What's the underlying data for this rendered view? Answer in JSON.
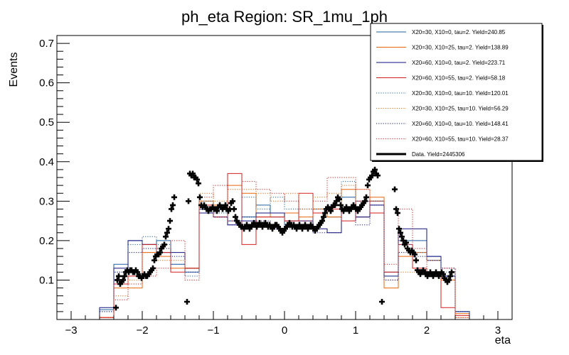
{
  "chart_data": {
    "type": "line",
    "title": "ph_eta Region: SR_1mu_1ph",
    "xlabel": "eta",
    "ylabel": "Events",
    "xlim": [
      -3.2,
      3.2
    ],
    "ylim": [
      0,
      0.72
    ],
    "x_ticks": [
      -3,
      -2,
      -1,
      0,
      1,
      2,
      3
    ],
    "x_tick_labels": [
      "−3",
      "−2",
      "−1",
      "0",
      "1",
      "2",
      "3"
    ],
    "y_ticks": [
      0.1,
      0.2,
      0.3,
      0.4,
      0.5,
      0.6,
      0.7
    ],
    "y_tick_labels": [
      "0.1",
      "0.2",
      "0.3",
      "0.4",
      "0.5",
      "0.6",
      "0.7"
    ],
    "legend_position": "top-right",
    "bin_edges": [
      -3.0,
      -2.8,
      -2.6,
      -2.4,
      -2.2,
      -2.0,
      -1.8,
      -1.6,
      -1.4,
      -1.2,
      -1.0,
      -0.8,
      -0.6,
      -0.4,
      -0.2,
      0.0,
      0.2,
      0.4,
      0.6,
      0.8,
      1.0,
      1.2,
      1.4,
      1.6,
      1.8,
      2.0,
      2.2,
      2.4,
      2.6,
      2.8,
      3.0
    ],
    "series": [
      {
        "name": "X20=30, X10=0, tau=2. Yield=240.85",
        "color": "#1f5f9f",
        "style": "solid",
        "values": [
          0,
          0,
          0.025,
          0.14,
          0.2,
          0.19,
          0.2,
          0.14,
          0.12,
          0.28,
          0.28,
          0.25,
          0.26,
          0.29,
          0.26,
          0.24,
          0.24,
          0.27,
          0.26,
          0.31,
          0.26,
          0.3,
          0.12,
          0.2,
          0.2,
          0.16,
          0.11,
          0.02,
          0,
          0
        ]
      },
      {
        "name": "X20=30, X10=25, tau=2. Yield=138.89",
        "color": "#e8660c",
        "style": "solid",
        "values": [
          0,
          0,
          0.005,
          0.08,
          0.08,
          0.17,
          0.16,
          0.13,
          0.13,
          0.3,
          0.29,
          0.34,
          0.32,
          0.26,
          0.27,
          0.27,
          0.26,
          0.28,
          0.26,
          0.33,
          0.26,
          0.31,
          0.08,
          0.16,
          0.17,
          0.15,
          0.1,
          0.015,
          0,
          0
        ]
      },
      {
        "name": "X20=60, X10=0, tau=2. Yield=223.71",
        "color": "#101080",
        "style": "solid",
        "values": [
          0,
          0,
          0.03,
          0.13,
          0.2,
          0.19,
          0.17,
          0.17,
          0.13,
          0.27,
          0.26,
          0.24,
          0.25,
          0.27,
          0.27,
          0.25,
          0.25,
          0.23,
          0.22,
          0.28,
          0.26,
          0.29,
          0.11,
          0.23,
          0.23,
          0.16,
          0.11,
          0.02,
          0,
          0
        ]
      },
      {
        "name": "X20=60, X10=55, tau=2. Yield=58.18",
        "color": "#d41e1e",
        "style": "solid",
        "values": [
          0,
          0,
          0.005,
          0.09,
          0.11,
          0.19,
          0.17,
          0.12,
          0.13,
          0.29,
          0.26,
          0.37,
          0.19,
          0.26,
          0.26,
          0.25,
          0.32,
          0.27,
          0.28,
          0.25,
          0.3,
          0.27,
          0.12,
          0.19,
          0.13,
          0.12,
          0.03,
          0.01,
          0,
          0
        ]
      },
      {
        "name": "X20=30, X10=0, tau=10. Yield=120.01",
        "color": "#1f5f9f",
        "style": "dotted",
        "values": [
          0,
          0,
          0.02,
          0.12,
          0.19,
          0.21,
          0.19,
          0.14,
          0.11,
          0.3,
          0.27,
          0.25,
          0.31,
          0.28,
          0.31,
          0.28,
          0.28,
          0.28,
          0.29,
          0.35,
          0.3,
          0.3,
          0.11,
          0.19,
          0.17,
          0.15,
          0.12,
          0.02,
          0,
          0
        ]
      },
      {
        "name": "X20=30, X10=25, tau=10. Yield=56.29",
        "color": "#e8660c",
        "style": "dotted",
        "values": [
          0,
          0,
          0.005,
          0.06,
          0.1,
          0.17,
          0.15,
          0.15,
          0.13,
          0.32,
          0.3,
          0.33,
          0.33,
          0.32,
          0.3,
          0.32,
          0.28,
          0.31,
          0.32,
          0.34,
          0.33,
          0.3,
          0.1,
          0.12,
          0.12,
          0.11,
          0.1,
          0.005,
          0,
          0
        ]
      },
      {
        "name": "X20=60, X10=0, tau=10. Yield=148.41",
        "color": "#101080",
        "style": "dotted",
        "values": [
          0,
          0,
          0.02,
          0.12,
          0.17,
          0.18,
          0.18,
          0.16,
          0.12,
          0.28,
          0.26,
          0.24,
          0.26,
          0.25,
          0.23,
          0.23,
          0.23,
          0.22,
          0.22,
          0.28,
          0.24,
          0.29,
          0.1,
          0.17,
          0.16,
          0.15,
          0.13,
          0.02,
          0,
          0
        ]
      },
      {
        "name": "X20=60, X10=55, tau=10. Yield=28.37",
        "color": "#d41e1e",
        "style": "dotted",
        "values": [
          0,
          0,
          0.005,
          0.05,
          0.09,
          0.11,
          0.13,
          0.2,
          0.1,
          0.31,
          0.34,
          0.25,
          0.35,
          0.33,
          0.32,
          0.3,
          0.25,
          0.3,
          0.36,
          0.36,
          0.33,
          0.3,
          0.14,
          0.28,
          0.18,
          0.12,
          0.13,
          0.005,
          0,
          0
        ]
      }
    ],
    "data_series": {
      "name": "Data. Yield=2445306",
      "color": "#000000",
      "points": [
        [
          -2.37,
          0.03
        ],
        [
          -2.35,
          0.1
        ],
        [
          -2.33,
          0.11
        ],
        [
          -2.31,
          0.09
        ],
        [
          -2.29,
          0.095
        ],
        [
          -2.27,
          0.1
        ],
        [
          -2.25,
          0.11
        ],
        [
          -2.23,
          0.12
        ],
        [
          -2.21,
          0.125
        ],
        [
          -2.19,
          0.12
        ],
        [
          -2.17,
          0.125
        ],
        [
          -2.15,
          0.125
        ],
        [
          -2.13,
          0.12
        ],
        [
          -2.11,
          0.12
        ],
        [
          -2.09,
          0.125
        ],
        [
          -2.07,
          0.12
        ],
        [
          -2.05,
          0.11
        ],
        [
          -2.03,
          0.11
        ],
        [
          -2.01,
          0.105
        ],
        [
          -1.99,
          0.11
        ],
        [
          -1.97,
          0.115
        ],
        [
          -1.95,
          0.11
        ],
        [
          -1.93,
          0.11
        ],
        [
          -1.91,
          0.115
        ],
        [
          -1.89,
          0.12
        ],
        [
          -1.87,
          0.125
        ],
        [
          -1.85,
          0.13
        ],
        [
          -1.83,
          0.15
        ],
        [
          -1.81,
          0.16
        ],
        [
          -1.79,
          0.165
        ],
        [
          -1.77,
          0.165
        ],
        [
          -1.75,
          0.17
        ],
        [
          -1.73,
          0.18
        ],
        [
          -1.71,
          0.185
        ],
        [
          -1.69,
          0.19
        ],
        [
          -1.67,
          0.21
        ],
        [
          -1.65,
          0.22
        ],
        [
          -1.63,
          0.23
        ],
        [
          -1.61,
          0.25
        ],
        [
          -1.59,
          0.28
        ],
        [
          -1.57,
          0.29
        ],
        [
          -1.55,
          0.31
        ],
        [
          -1.37,
          0.045
        ],
        [
          -1.35,
          0.3
        ],
        [
          -1.33,
          0.37
        ],
        [
          -1.31,
          0.365
        ],
        [
          -1.29,
          0.37
        ],
        [
          -1.27,
          0.36
        ],
        [
          -1.25,
          0.36
        ],
        [
          -1.23,
          0.355
        ],
        [
          -1.21,
          0.345
        ],
        [
          -1.19,
          0.31
        ],
        [
          -1.17,
          0.29
        ],
        [
          -1.15,
          0.285
        ],
        [
          -1.13,
          0.29
        ],
        [
          -1.11,
          0.285
        ],
        [
          -1.09,
          0.28
        ],
        [
          -1.07,
          0.275
        ],
        [
          -1.05,
          0.28
        ],
        [
          -1.03,
          0.28
        ],
        [
          -1.01,
          0.285
        ],
        [
          -0.99,
          0.28
        ],
        [
          -0.97,
          0.28
        ],
        [
          -0.95,
          0.275
        ],
        [
          -0.93,
          0.285
        ],
        [
          -0.91,
          0.29
        ],
        [
          -0.89,
          0.285
        ],
        [
          -0.87,
          0.28
        ],
        [
          -0.85,
          0.285
        ],
        [
          -0.83,
          0.29
        ],
        [
          -0.81,
          0.28
        ],
        [
          -0.79,
          0.275
        ],
        [
          -0.77,
          0.28
        ],
        [
          -0.75,
          0.295
        ],
        [
          -0.73,
          0.3
        ],
        [
          -0.71,
          0.28
        ],
        [
          -0.69,
          0.26
        ],
        [
          -0.67,
          0.25
        ],
        [
          -0.65,
          0.245
        ],
        [
          -0.63,
          0.24
        ],
        [
          -0.61,
          0.235
        ],
        [
          -0.59,
          0.235
        ],
        [
          -0.57,
          0.23
        ],
        [
          -0.55,
          0.235
        ],
        [
          -0.53,
          0.24
        ],
        [
          -0.51,
          0.235
        ],
        [
          -0.49,
          0.23
        ],
        [
          -0.47,
          0.235
        ],
        [
          -0.45,
          0.24
        ],
        [
          -0.43,
          0.245
        ],
        [
          -0.41,
          0.24
        ],
        [
          -0.39,
          0.235
        ],
        [
          -0.37,
          0.24
        ],
        [
          -0.35,
          0.245
        ],
        [
          -0.33,
          0.24
        ],
        [
          -0.31,
          0.235
        ],
        [
          -0.29,
          0.24
        ],
        [
          -0.27,
          0.245
        ],
        [
          -0.25,
          0.24
        ],
        [
          -0.23,
          0.235
        ],
        [
          -0.21,
          0.24
        ],
        [
          -0.19,
          0.235
        ],
        [
          -0.17,
          0.23
        ],
        [
          -0.15,
          0.235
        ],
        [
          -0.13,
          0.24
        ],
        [
          -0.11,
          0.24
        ],
        [
          -0.09,
          0.235
        ],
        [
          -0.07,
          0.23
        ],
        [
          -0.05,
          0.225
        ],
        [
          -0.03,
          0.22
        ],
        [
          -0.01,
          0.225
        ],
        [
          0.01,
          0.23
        ],
        [
          0.03,
          0.235
        ],
        [
          0.05,
          0.24
        ],
        [
          0.07,
          0.245
        ],
        [
          0.09,
          0.24
        ],
        [
          0.11,
          0.235
        ],
        [
          0.13,
          0.24
        ],
        [
          0.15,
          0.235
        ],
        [
          0.17,
          0.23
        ],
        [
          0.19,
          0.235
        ],
        [
          0.21,
          0.24
        ],
        [
          0.23,
          0.235
        ],
        [
          0.25,
          0.23
        ],
        [
          0.27,
          0.235
        ],
        [
          0.29,
          0.24
        ],
        [
          0.31,
          0.235
        ],
        [
          0.33,
          0.23
        ],
        [
          0.35,
          0.235
        ],
        [
          0.37,
          0.24
        ],
        [
          0.39,
          0.235
        ],
        [
          0.41,
          0.23
        ],
        [
          0.43,
          0.225
        ],
        [
          0.45,
          0.23
        ],
        [
          0.47,
          0.235
        ],
        [
          0.49,
          0.24
        ],
        [
          0.51,
          0.245
        ],
        [
          0.53,
          0.25
        ],
        [
          0.55,
          0.26
        ],
        [
          0.57,
          0.27
        ],
        [
          0.59,
          0.28
        ],
        [
          0.61,
          0.285
        ],
        [
          0.63,
          0.28
        ],
        [
          0.65,
          0.275
        ],
        [
          0.67,
          0.285
        ],
        [
          0.69,
          0.29
        ],
        [
          0.71,
          0.29
        ],
        [
          0.73,
          0.3
        ],
        [
          0.75,
          0.31
        ],
        [
          0.77,
          0.305
        ],
        [
          0.79,
          0.29
        ],
        [
          0.81,
          0.28
        ],
        [
          0.83,
          0.275
        ],
        [
          0.85,
          0.28
        ],
        [
          0.87,
          0.285
        ],
        [
          0.89,
          0.28
        ],
        [
          0.91,
          0.275
        ],
        [
          0.93,
          0.28
        ],
        [
          0.95,
          0.285
        ],
        [
          0.97,
          0.29
        ],
        [
          0.99,
          0.285
        ],
        [
          1.01,
          0.28
        ],
        [
          1.03,
          0.275
        ],
        [
          1.05,
          0.28
        ],
        [
          1.07,
          0.285
        ],
        [
          1.09,
          0.29
        ],
        [
          1.11,
          0.295
        ],
        [
          1.13,
          0.3
        ],
        [
          1.15,
          0.31
        ],
        [
          1.17,
          0.34
        ],
        [
          1.19,
          0.355
        ],
        [
          1.21,
          0.36
        ],
        [
          1.23,
          0.365
        ],
        [
          1.25,
          0.375
        ],
        [
          1.27,
          0.38
        ],
        [
          1.29,
          0.37
        ],
        [
          1.31,
          0.365
        ],
        [
          1.37,
          0.045
        ],
        [
          1.55,
          0.33
        ],
        [
          1.57,
          0.28
        ],
        [
          1.59,
          0.27
        ],
        [
          1.61,
          0.23
        ],
        [
          1.63,
          0.22
        ],
        [
          1.65,
          0.21
        ],
        [
          1.67,
          0.2
        ],
        [
          1.69,
          0.19
        ],
        [
          1.71,
          0.195
        ],
        [
          1.73,
          0.18
        ],
        [
          1.75,
          0.175
        ],
        [
          1.77,
          0.17
        ],
        [
          1.79,
          0.175
        ],
        [
          1.81,
          0.17
        ],
        [
          1.83,
          0.165
        ],
        [
          1.85,
          0.15
        ],
        [
          1.87,
          0.125
        ],
        [
          1.89,
          0.12
        ],
        [
          1.91,
          0.115
        ],
        [
          1.93,
          0.12
        ],
        [
          1.95,
          0.125
        ],
        [
          1.97,
          0.12
        ],
        [
          1.99,
          0.115
        ],
        [
          2.01,
          0.11
        ],
        [
          2.03,
          0.115
        ],
        [
          2.05,
          0.12
        ],
        [
          2.07,
          0.115
        ],
        [
          2.09,
          0.11
        ],
        [
          2.11,
          0.115
        ],
        [
          2.13,
          0.12
        ],
        [
          2.15,
          0.115
        ],
        [
          2.17,
          0.11
        ],
        [
          2.19,
          0.115
        ],
        [
          2.21,
          0.12
        ],
        [
          2.23,
          0.115
        ],
        [
          2.25,
          0.105
        ],
        [
          2.27,
          0.1
        ],
        [
          2.29,
          0.095
        ],
        [
          2.31,
          0.1
        ],
        [
          2.33,
          0.11
        ],
        [
          2.35,
          0.12
        ]
      ]
    }
  }
}
